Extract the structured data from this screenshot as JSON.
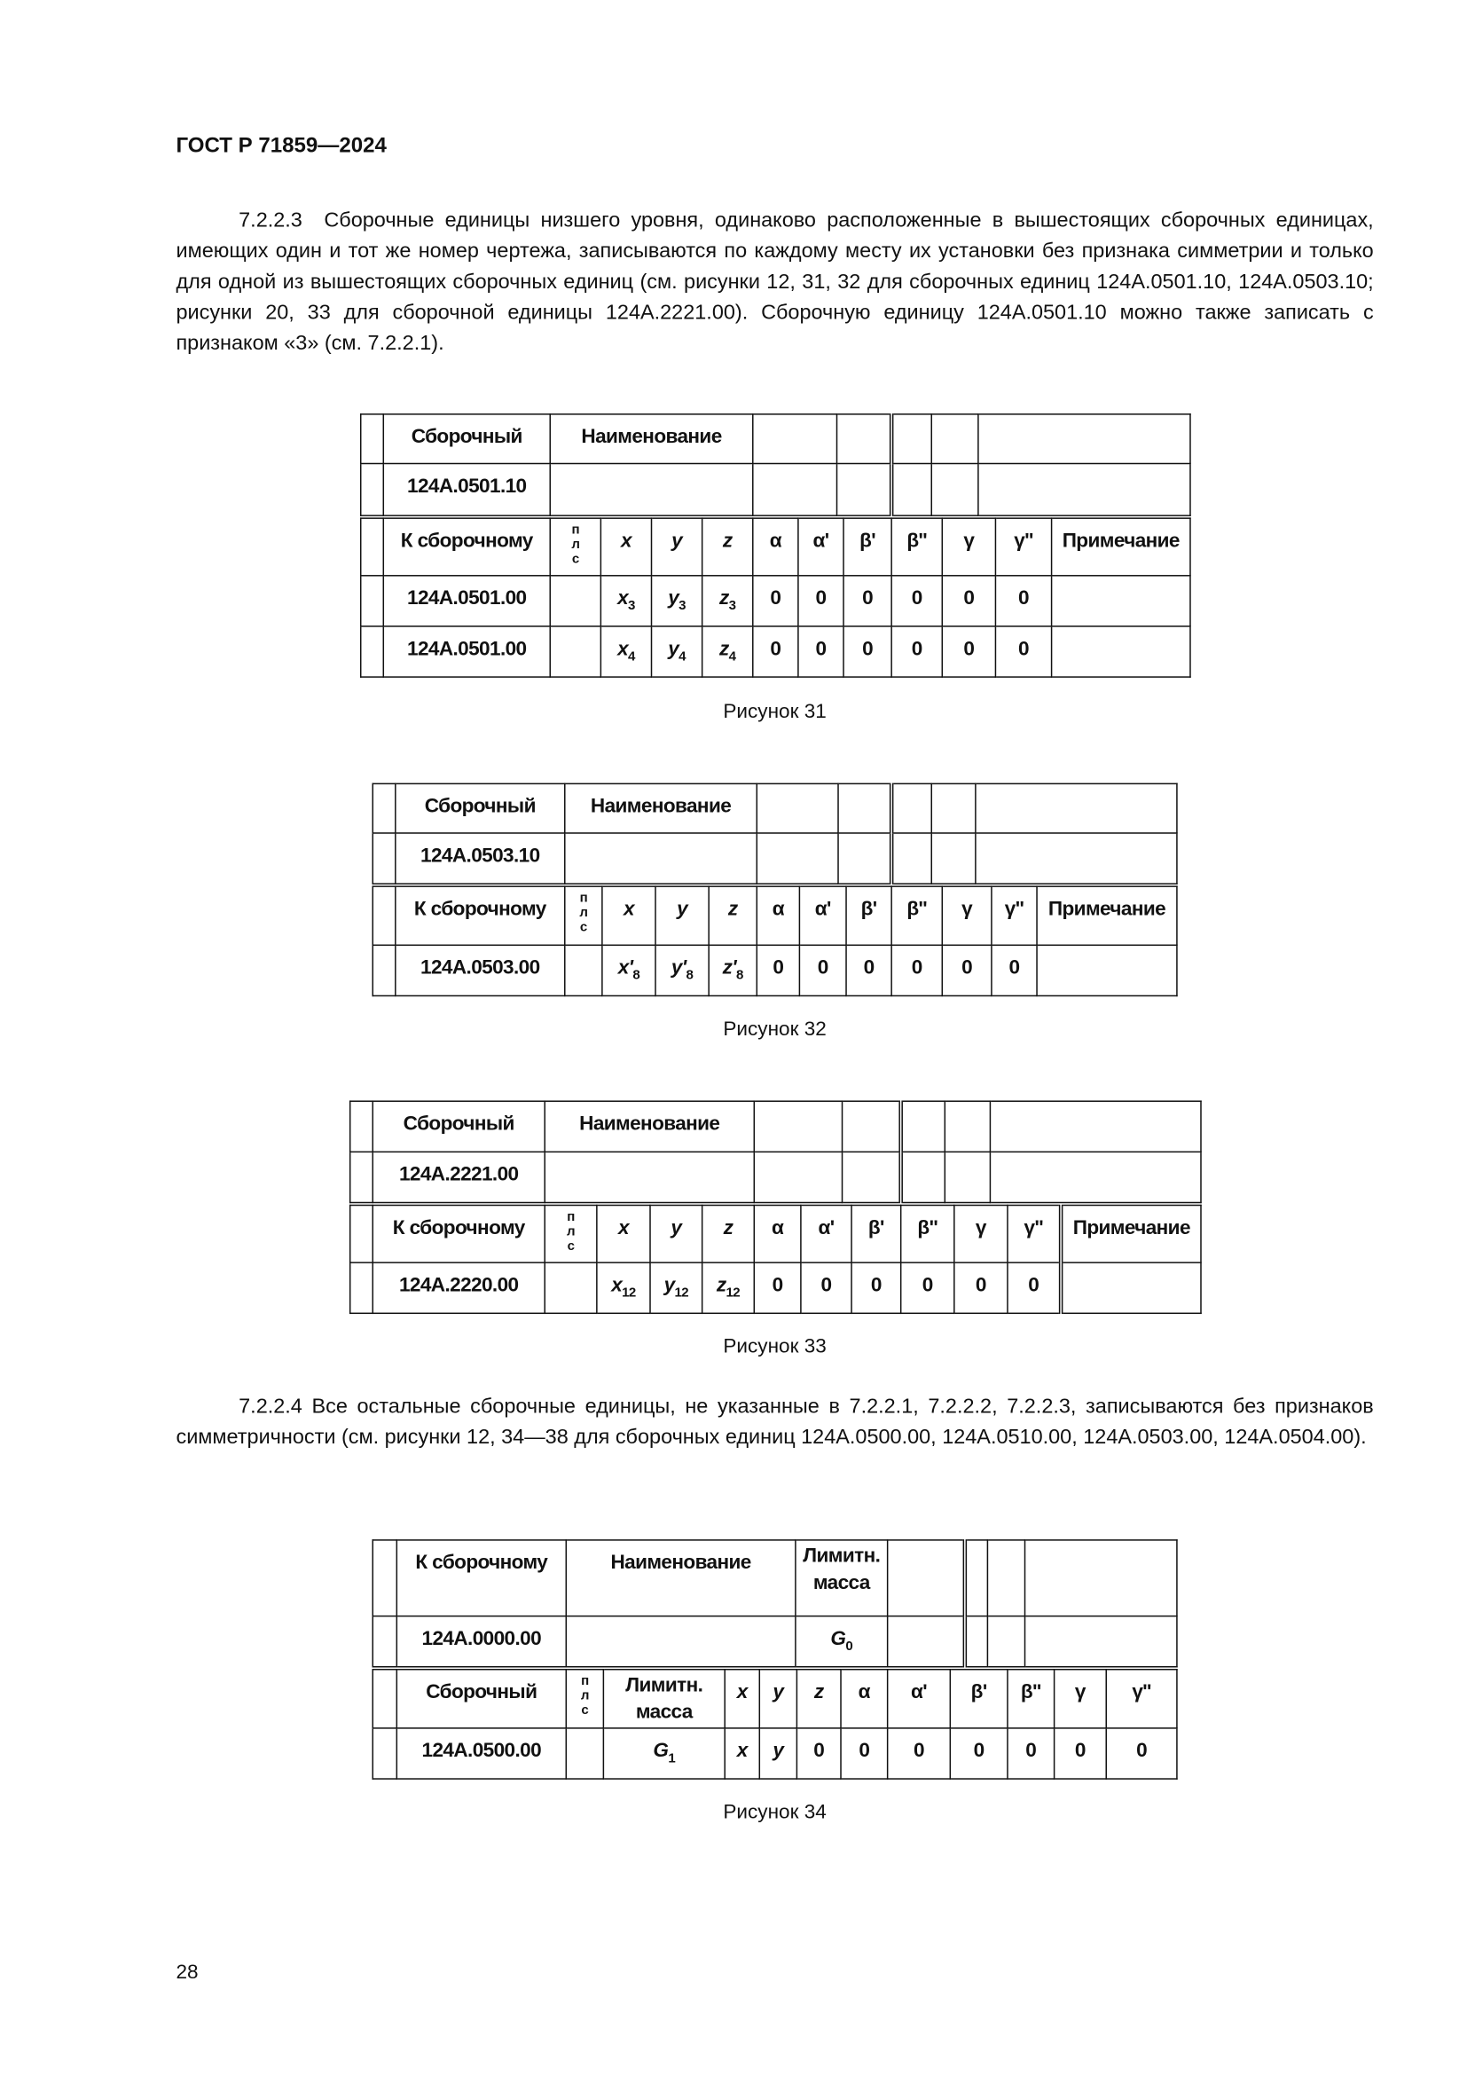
{
  "header": {
    "title": "ГОСТ Р 71859—2024"
  },
  "paragraphs": [
    {
      "number": "7.2.2.3",
      "text": "Сборочные единицы низшего уровня, одинаково расположенные в вышестоящих сборочных единицах, имеющих один и тот же номер чертежа, записываются по каждому месту их установки без признака симметрии и только для одной из вышестоящих сборочных единиц (см. рисунки 12, 31, 32 для сборочных единиц 124А.0501.10, 124А.0503.10; рисунки 20, 33 для сборочной единицы 124А.2221.00). Сборочную единицу 124А.0501.10 можно также записать с признаком «3» (см. 7.2.2.1)."
    },
    {
      "number": "7.2.2.4",
      "text": "Все остальные сборочные единицы, не указанные в 7.2.2.1, 7.2.2.2, 7.2.2.3, записываются без признаков симметричности (см. рисунки 12, 34—38 для сборочных единиц 124А.0500.00, 124А.0510.00, 124А.0503.00, 124А.0504.00)."
    }
  ],
  "figures": [
    {
      "caption": "Рисунок 31",
      "top_rows": [
        [
          "",
          "Сборочный",
          "Наименование",
          "",
          "",
          "",
          "",
          ""
        ],
        [
          "",
          "124А.0501.10",
          "",
          "",
          "",
          "",
          "",
          ""
        ]
      ],
      "bottom_rows": [
        [
          "",
          "К сборочному",
          "п\nл\nс",
          {
            "v": "x"
          },
          {
            "v": "y"
          },
          {
            "v": "z"
          },
          "α",
          "α'",
          "β'",
          "β''",
          "γ",
          "γ''",
          "Примечание"
        ],
        [
          "",
          "124А.0501.00",
          "",
          {
            "v": "x",
            "sub": "3"
          },
          {
            "v": "y",
            "sub": "3"
          },
          {
            "v": "z",
            "sub": "3"
          },
          "0",
          "0",
          "0",
          "0",
          "0",
          "0",
          ""
        ],
        [
          "",
          "124А.0501.00",
          "",
          {
            "v": "x",
            "sub": "4"
          },
          {
            "v": "y",
            "sub": "4"
          },
          {
            "v": "z",
            "sub": "4"
          },
          "0",
          "0",
          "0",
          "0",
          "0",
          "0",
          ""
        ]
      ]
    },
    {
      "caption": "Рисунок 32",
      "top_rows": [
        [
          "",
          "Сборочный",
          "Наименование",
          "",
          "",
          "",
          "",
          ""
        ],
        [
          "",
          "124А.0503.10",
          "",
          "",
          "",
          "",
          "",
          ""
        ]
      ],
      "bottom_rows": [
        [
          "",
          "К сборочному",
          "п\nл\nс",
          {
            "v": "x"
          },
          {
            "v": "y"
          },
          {
            "v": "z"
          },
          "α",
          "α'",
          "β'",
          "β''",
          "γ",
          "γ''",
          "Примечание"
        ],
        [
          "",
          "124А.0503.00",
          "",
          {
            "v": "x'",
            "sub": "8"
          },
          {
            "v": "y'",
            "sub": "8"
          },
          {
            "v": "z'",
            "sub": "8"
          },
          "0",
          "0",
          "0",
          "0",
          "0",
          "0",
          ""
        ]
      ]
    },
    {
      "caption": "Рисунок 33",
      "top_rows": [
        [
          "",
          "Сборочный",
          "Наименование",
          "",
          "",
          "",
          "",
          ""
        ],
        [
          "",
          "124А.2221.00",
          "",
          "",
          "",
          "",
          "",
          ""
        ]
      ],
      "bottom_rows": [
        [
          "",
          "К сборочному",
          "п\nл\nс",
          {
            "v": "x"
          },
          {
            "v": "y"
          },
          {
            "v": "z"
          },
          "α",
          "α'",
          "β'",
          "β''",
          "γ",
          "γ''",
          "Примечание"
        ],
        [
          "",
          "124А.2220.00",
          "",
          {
            "v": "x",
            "sub": "12"
          },
          {
            "v": "y",
            "sub": "12"
          },
          {
            "v": "z",
            "sub": "12"
          },
          "0",
          "0",
          "0",
          "0",
          "0",
          "0",
          ""
        ]
      ]
    },
    {
      "caption": "Рисунок 34",
      "top_rows": [
        [
          "",
          "К сборочному",
          "Наименование",
          "Лимитн.\nмасса",
          "",
          "",
          "",
          ""
        ],
        [
          "",
          "124А.0000.00",
          "",
          {
            "v": "G",
            "sub": "0"
          },
          "",
          "",
          "",
          ""
        ]
      ],
      "bottom_rows": [
        [
          "",
          "Сборочный",
          "п\nл\nс",
          "Лимитн.\nмасса",
          {
            "v": "x"
          },
          {
            "v": "y"
          },
          {
            "v": "z"
          },
          "α",
          "α'",
          "β'",
          "β''",
          "γ",
          "γ''"
        ],
        [
          "",
          "124А.0500.00",
          "",
          {
            "v": "G",
            "sub": "1"
          },
          {
            "v": "x"
          },
          {
            "v": "y"
          },
          "0",
          "0",
          "0",
          "0",
          "0",
          "0",
          "0"
        ]
      ]
    }
  ],
  "page_number": "28"
}
